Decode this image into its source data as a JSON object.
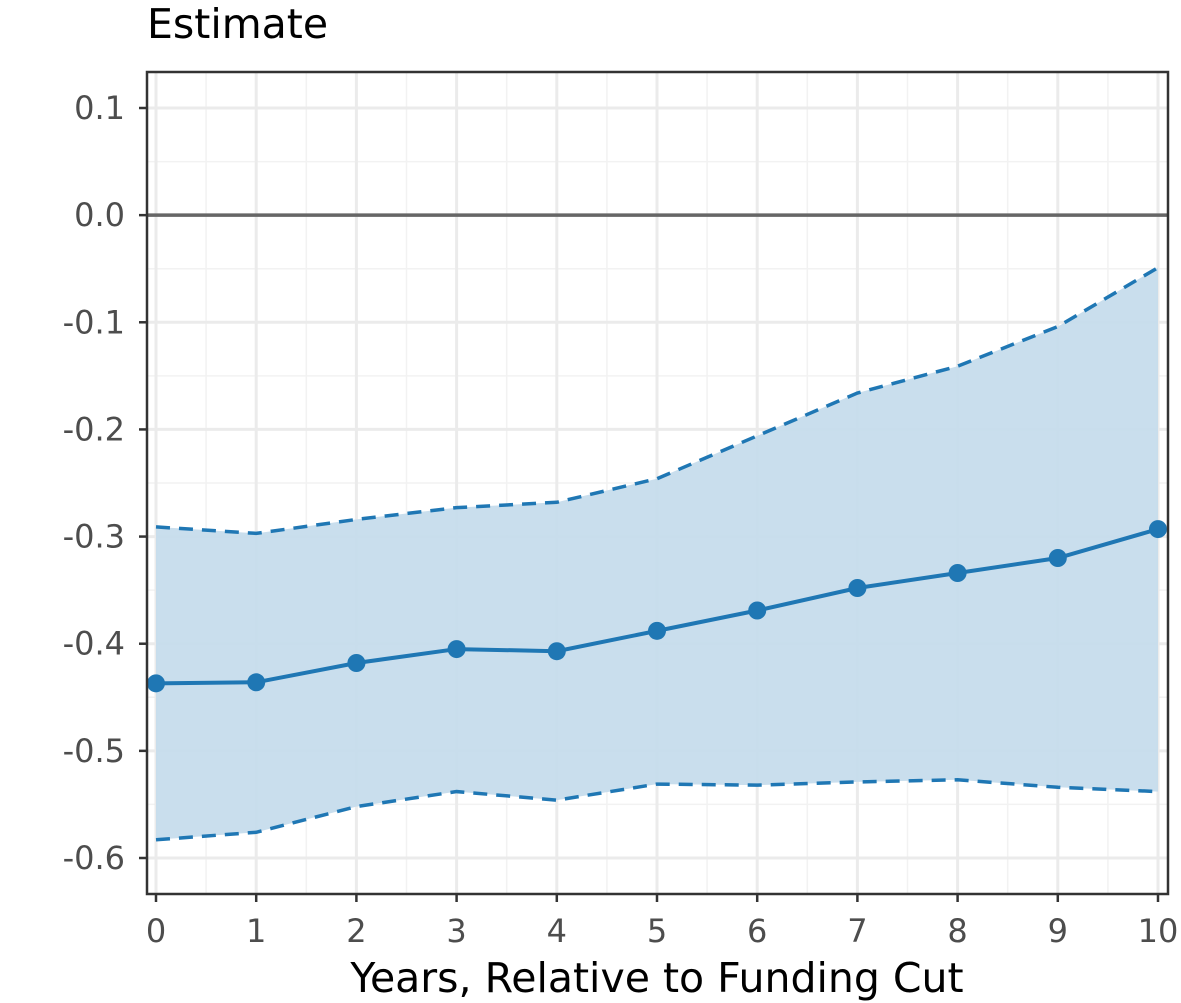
{
  "chart_data": {
    "type": "line",
    "title": "Estimate",
    "xlabel": "Years, Relative to Funding Cut",
    "ylabel": "",
    "x": [
      0,
      1,
      2,
      3,
      4,
      5,
      6,
      7,
      8,
      9,
      10
    ],
    "xlim": [
      0,
      10
    ],
    "ylim": [
      -0.635,
      0.135
    ],
    "x_ticks": [
      "0",
      "1",
      "2",
      "3",
      "4",
      "5",
      "6",
      "7",
      "8",
      "9",
      "10"
    ],
    "y_ticks": [
      "0.1",
      "0.0",
      "-0.1",
      "-0.2",
      "-0.3",
      "-0.4",
      "-0.5",
      "-0.6"
    ],
    "y_tick_values": [
      0.1,
      0.0,
      -0.1,
      -0.2,
      -0.3,
      -0.4,
      -0.5,
      -0.6
    ],
    "reference_line_y": 0.0,
    "grid": true,
    "series": [
      {
        "role": "estimate",
        "values": [
          -0.437,
          -0.436,
          -0.418,
          -0.405,
          -0.407,
          -0.388,
          -0.369,
          -0.348,
          -0.334,
          -0.32,
          -0.293
        ]
      },
      {
        "role": "upper bound",
        "values": [
          -0.291,
          -0.297,
          -0.284,
          -0.273,
          -0.268,
          -0.246,
          -0.206,
          -0.166,
          -0.141,
          -0.104,
          -0.049
        ]
      },
      {
        "role": "lower bound",
        "values": [
          -0.583,
          -0.576,
          -0.552,
          -0.538,
          -0.546,
          -0.531,
          -0.532,
          -0.529,
          -0.527,
          -0.534,
          -0.538
        ]
      }
    ],
    "colors": {
      "line": "#1f77b4",
      "ribbon": "#c6dcec",
      "reference": "#666666",
      "grid_major": "#ebebeb",
      "grid_minor": "#f2f2f2",
      "border": "#333333"
    }
  }
}
